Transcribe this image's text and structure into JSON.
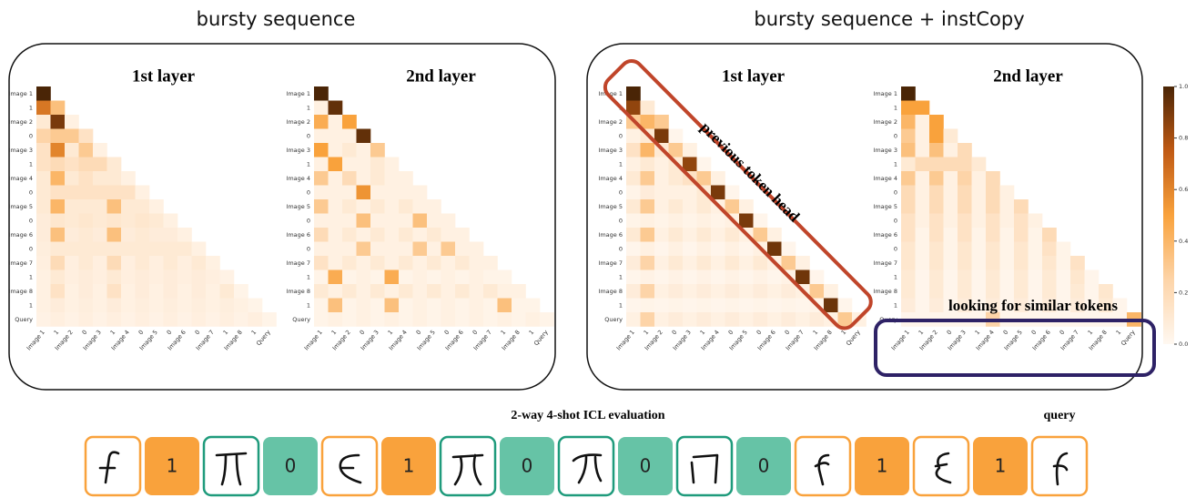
{
  "titles": [
    "bursty sequence",
    "bursty sequence + instCopy"
  ],
  "chart_data": [
    {
      "type": "heatmap",
      "title": "1st layer",
      "rows": [
        "Image 1",
        "1",
        "Image 2",
        "0",
        "Image 3",
        "1",
        "Image 4",
        "0",
        "Image 5",
        "0",
        "Image 6",
        "0",
        "Image 7",
        "1",
        "Image 8",
        "1",
        "Query"
      ],
      "columns": [
        "Image 1",
        "1",
        "Image 2",
        "0",
        "Image 3",
        "1",
        "Image 4",
        "0",
        "Image 5",
        "0",
        "Image 6",
        "0",
        "Image 7",
        "1",
        "Image 8",
        "1",
        "Query"
      ],
      "values": [
        [
          1
        ],
        [
          0.65,
          0.35
        ],
        [
          0.1,
          0.9,
          0.05
        ],
        [
          0.25,
          0.3,
          0.3,
          0.15
        ],
        [
          0.15,
          0.6,
          0.1,
          0.3,
          0.05
        ],
        [
          0.15,
          0.2,
          0.15,
          0.2,
          0.2,
          0.1
        ],
        [
          0.1,
          0.4,
          0.1,
          0.15,
          0.1,
          0.1,
          0.05
        ],
        [
          0.1,
          0.15,
          0.15,
          0.15,
          0.15,
          0.15,
          0.15,
          0.05
        ],
        [
          0.1,
          0.4,
          0.1,
          0.1,
          0.1,
          0.35,
          0.1,
          0.1,
          0.05
        ],
        [
          0.08,
          0.12,
          0.1,
          0.12,
          0.1,
          0.12,
          0.1,
          0.12,
          0.1,
          0.05
        ],
        [
          0.08,
          0.35,
          0.08,
          0.1,
          0.08,
          0.35,
          0.08,
          0.1,
          0.08,
          0.08,
          0.05
        ],
        [
          0.07,
          0.1,
          0.1,
          0.1,
          0.1,
          0.1,
          0.1,
          0.1,
          0.1,
          0.1,
          0.1,
          0.05
        ],
        [
          0.06,
          0.2,
          0.06,
          0.1,
          0.06,
          0.2,
          0.06,
          0.1,
          0.06,
          0.1,
          0.06,
          0.1,
          0.05
        ],
        [
          0.05,
          0.1,
          0.06,
          0.08,
          0.06,
          0.1,
          0.06,
          0.08,
          0.06,
          0.08,
          0.06,
          0.08,
          0.06,
          0.04
        ],
        [
          0.05,
          0.15,
          0.05,
          0.08,
          0.05,
          0.15,
          0.05,
          0.08,
          0.05,
          0.08,
          0.05,
          0.08,
          0.05,
          0.1,
          0.03
        ],
        [
          0.05,
          0.08,
          0.05,
          0.07,
          0.05,
          0.08,
          0.05,
          0.07,
          0.05,
          0.07,
          0.05,
          0.07,
          0.05,
          0.07,
          0.05,
          0.03
        ],
        [
          0.04,
          0.06,
          0.04,
          0.06,
          0.04,
          0.06,
          0.04,
          0.06,
          0.04,
          0.06,
          0.04,
          0.06,
          0.04,
          0.06,
          0.04,
          0.06,
          0.03
        ]
      ]
    },
    {
      "type": "heatmap",
      "title": "2nd layer",
      "rows": [
        "Image 1",
        "1",
        "Image 2",
        "0",
        "Image 3",
        "1",
        "Image 4",
        "0",
        "Image 5",
        "0",
        "Image 6",
        "0",
        "Image 7",
        "1",
        "Image 8",
        "1",
        "Query"
      ],
      "columns": [
        "Image 1",
        "1",
        "Image 2",
        "0",
        "Image 3",
        "1",
        "Image 4",
        "0",
        "Image 5",
        "0",
        "Image 6",
        "0",
        "Image 7",
        "1",
        "Image 8",
        "1",
        "Query"
      ],
      "values": [
        [
          1
        ],
        [
          0.05,
          0.95
        ],
        [
          0.45,
          0.05,
          0.5
        ],
        [
          0.05,
          0.05,
          0.05,
          0.95
        ],
        [
          0.5,
          0.05,
          0.1,
          0.05,
          0.3
        ],
        [
          0.05,
          0.5,
          0.05,
          0.05,
          0.1,
          0.05
        ],
        [
          0.3,
          0.05,
          0.2,
          0.05,
          0.1,
          0.05,
          0.05
        ],
        [
          0.05,
          0.05,
          0.05,
          0.55,
          0.05,
          0.05,
          0.05,
          0.05
        ],
        [
          0.3,
          0.05,
          0.1,
          0.05,
          0.1,
          0.05,
          0.1,
          0.05,
          0.05
        ],
        [
          0.05,
          0.05,
          0.05,
          0.35,
          0.05,
          0.05,
          0.05,
          0.35,
          0.05,
          0.05
        ],
        [
          0.2,
          0.05,
          0.1,
          0.05,
          0.1,
          0.05,
          0.1,
          0.05,
          0.1,
          0.05,
          0.05
        ],
        [
          0.05,
          0.05,
          0.05,
          0.3,
          0.05,
          0.05,
          0.05,
          0.3,
          0.05,
          0.3,
          0.05,
          0.05
        ],
        [
          0.15,
          0.05,
          0.1,
          0.05,
          0.1,
          0.05,
          0.1,
          0.05,
          0.1,
          0.05,
          0.1,
          0.05,
          0.05
        ],
        [
          0.03,
          0.45,
          0.03,
          0.05,
          0.03,
          0.45,
          0.03,
          0.05,
          0.03,
          0.05,
          0.03,
          0.05,
          0.03,
          0.03
        ],
        [
          0.1,
          0.05,
          0.1,
          0.05,
          0.1,
          0.05,
          0.1,
          0.05,
          0.1,
          0.05,
          0.1,
          0.05,
          0.1,
          0.05,
          0.05
        ],
        [
          0.03,
          0.35,
          0.03,
          0.05,
          0.03,
          0.35,
          0.03,
          0.05,
          0.03,
          0.05,
          0.03,
          0.05,
          0.03,
          0.35,
          0.03,
          0.03
        ],
        [
          0.03,
          0.05,
          0.03,
          0.05,
          0.03,
          0.05,
          0.03,
          0.05,
          0.03,
          0.05,
          0.03,
          0.05,
          0.03,
          0.05,
          0.03,
          0.05,
          0.03
        ]
      ]
    },
    {
      "type": "heatmap",
      "title": "1st layer",
      "rows": [
        "Image 1",
        "1",
        "Image 2",
        "0",
        "Image 3",
        "1",
        "Image 4",
        "0",
        "Image 5",
        "0",
        "Image 6",
        "0",
        "Image 7",
        "1",
        "Image 8",
        "1",
        "Query"
      ],
      "columns": [
        "Image 1",
        "1",
        "Image 2",
        "0",
        "Image 3",
        "1",
        "Image 4",
        "0",
        "Image 5",
        "0",
        "Image 6",
        "0",
        "Image 7",
        "1",
        "Image 8",
        "1",
        "Query"
      ],
      "values": [
        [
          1
        ],
        [
          0.85,
          0.1
        ],
        [
          0.3,
          0.4,
          0.3
        ],
        [
          0.05,
          0.1,
          0.9,
          0.02
        ],
        [
          0.15,
          0.4,
          0.1,
          0.3,
          0.05
        ],
        [
          0.05,
          0.1,
          0.05,
          0.1,
          0.85,
          0.02
        ],
        [
          0.1,
          0.3,
          0.05,
          0.1,
          0.15,
          0.3,
          0.05
        ],
        [
          0.03,
          0.08,
          0.05,
          0.05,
          0.05,
          0.1,
          0.9,
          0.02
        ],
        [
          0.1,
          0.3,
          0.05,
          0.1,
          0.05,
          0.1,
          0.05,
          0.3,
          0.05
        ],
        [
          0.03,
          0.05,
          0.03,
          0.05,
          0.03,
          0.05,
          0.03,
          0.05,
          0.9,
          0.02
        ],
        [
          0.1,
          0.3,
          0.05,
          0.1,
          0.05,
          0.1,
          0.05,
          0.1,
          0.05,
          0.3,
          0.05
        ],
        [
          0.02,
          0.05,
          0.02,
          0.05,
          0.02,
          0.05,
          0.02,
          0.05,
          0.02,
          0.05,
          0.92,
          0.02
        ],
        [
          0.08,
          0.25,
          0.05,
          0.1,
          0.05,
          0.1,
          0.05,
          0.1,
          0.05,
          0.1,
          0.05,
          0.3,
          0.05
        ],
        [
          0.02,
          0.04,
          0.02,
          0.04,
          0.02,
          0.04,
          0.02,
          0.04,
          0.02,
          0.04,
          0.02,
          0.04,
          0.92,
          0.02
        ],
        [
          0.08,
          0.25,
          0.05,
          0.08,
          0.05,
          0.08,
          0.05,
          0.08,
          0.05,
          0.08,
          0.05,
          0.08,
          0.05,
          0.3,
          0.05
        ],
        [
          0.02,
          0.03,
          0.02,
          0.03,
          0.02,
          0.03,
          0.02,
          0.03,
          0.02,
          0.03,
          0.02,
          0.03,
          0.02,
          0.03,
          0.93,
          0.02
        ],
        [
          0.05,
          0.25,
          0.05,
          0.08,
          0.05,
          0.08,
          0.05,
          0.08,
          0.05,
          0.08,
          0.05,
          0.08,
          0.05,
          0.08,
          0.05,
          0.3,
          0.05
        ]
      ]
    },
    {
      "type": "heatmap",
      "title": "2nd layer",
      "rows": [
        "Image 1",
        "1",
        "Image 2",
        "0",
        "Image 3",
        "1",
        "Image 4",
        "0",
        "Image 5",
        "0",
        "Image 6",
        "0",
        "Image 7",
        "1",
        "Image 8",
        "1",
        "Query"
      ],
      "columns": [
        "Image 1",
        "1",
        "Image 2",
        "0",
        "Image 3",
        "1",
        "Image 4",
        "0",
        "Image 5",
        "0",
        "Image 6",
        "0",
        "Image 7",
        "1",
        "Image 8",
        "1",
        "Query"
      ],
      "values": [
        [
          1
        ],
        [
          0.5,
          0.5
        ],
        [
          0.4,
          0.05,
          0.5
        ],
        [
          0.3,
          0.05,
          0.5,
          0.1
        ],
        [
          0.35,
          0.05,
          0.35,
          0.05,
          0.2
        ],
        [
          0.1,
          0.2,
          0.2,
          0.2,
          0.2,
          0.1
        ],
        [
          0.3,
          0.05,
          0.3,
          0.05,
          0.25,
          0.05,
          0.2
        ],
        [
          0.2,
          0.05,
          0.2,
          0.05,
          0.2,
          0.05,
          0.2,
          0.05
        ],
        [
          0.2,
          0.05,
          0.2,
          0.05,
          0.2,
          0.05,
          0.2,
          0.05,
          0.2
        ],
        [
          0.15,
          0.05,
          0.15,
          0.05,
          0.15,
          0.05,
          0.15,
          0.05,
          0.15,
          0.05
        ],
        [
          0.15,
          0.03,
          0.15,
          0.03,
          0.15,
          0.03,
          0.15,
          0.03,
          0.15,
          0.03,
          0.2
        ],
        [
          0.12,
          0.03,
          0.12,
          0.03,
          0.12,
          0.03,
          0.12,
          0.03,
          0.12,
          0.03,
          0.15,
          0.03
        ],
        [
          0.12,
          0.03,
          0.12,
          0.03,
          0.12,
          0.03,
          0.12,
          0.03,
          0.12,
          0.03,
          0.12,
          0.03,
          0.15
        ],
        [
          0.1,
          0.02,
          0.1,
          0.02,
          0.1,
          0.02,
          0.1,
          0.02,
          0.1,
          0.02,
          0.1,
          0.02,
          0.12,
          0.02
        ],
        [
          0.1,
          0.02,
          0.1,
          0.02,
          0.1,
          0.02,
          0.1,
          0.02,
          0.1,
          0.02,
          0.1,
          0.02,
          0.1,
          0.02,
          0.12
        ],
        [
          0.08,
          0.02,
          0.08,
          0.02,
          0.08,
          0.02,
          0.08,
          0.02,
          0.08,
          0.02,
          0.08,
          0.02,
          0.08,
          0.02,
          0.1,
          0.02
        ],
        [
          0.02,
          0.02,
          0.02,
          0.02,
          0.02,
          0.02,
          0.25,
          0.02,
          0.02,
          0.02,
          0.02,
          0.02,
          0.02,
          0.02,
          0.02,
          0.02,
          0.4
        ]
      ]
    }
  ],
  "colorbar": {
    "lim": [
      0,
      1
    ],
    "ticks": [
      {
        "value": 0,
        "label": "0.0"
      },
      {
        "value": 0.2,
        "label": "0.2"
      },
      {
        "value": 0.4,
        "label": "0.4"
      },
      {
        "value": 0.6,
        "label": "0.6"
      },
      {
        "value": 0.8,
        "label": "0.8"
      },
      {
        "value": 1,
        "label": "1.0"
      }
    ],
    "colors": [
      "#fff8f1",
      "#fdd4a8",
      "#f9a23c",
      "#c05a14",
      "#4a2506"
    ]
  },
  "annotations": [
    "previous token head",
    "looking for similar tokens"
  ],
  "sequence": {
    "title": "2-way 4-shot ICL evaluation",
    "query": "query",
    "labels": [
      "1",
      "0",
      "1",
      "0",
      "0",
      "0",
      "1",
      "1"
    ]
  }
}
